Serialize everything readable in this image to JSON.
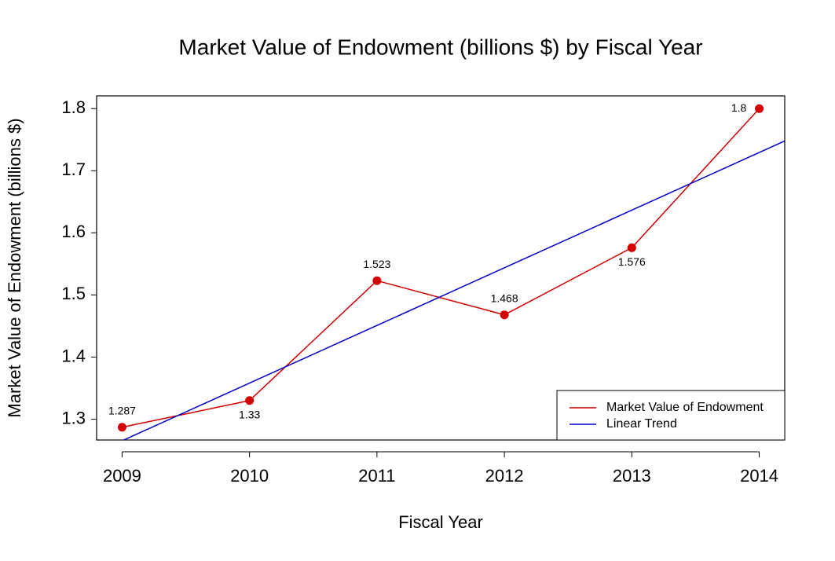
{
  "chart_data": {
    "type": "line",
    "title": "Market Value of Endowment (billions $) by Fiscal Year",
    "xlabel": "Fiscal Year",
    "ylabel": "Market Value of Endowment (billions $)",
    "x": [
      2009,
      2010,
      2011,
      2012,
      2013,
      2014
    ],
    "series": [
      {
        "name": "Market Value of Endowment",
        "color": "#d40000",
        "values": [
          1.287,
          1.33,
          1.523,
          1.468,
          1.576,
          1.8
        ],
        "markers": true,
        "labels": true
      },
      {
        "name": "Linear Trend",
        "color": "#0000c8",
        "values": [
          1.2653,
          1.3581,
          1.4509,
          1.5437,
          1.6365,
          1.7293
        ],
        "markers": false,
        "labels": false
      }
    ],
    "xlim": [
      2008.8,
      2014.2
    ],
    "xticks": [
      2009,
      2010,
      2011,
      2012,
      2013,
      2014
    ],
    "ylim": [
      1.2665,
      1.8205
    ],
    "yticks": [
      1.3,
      1.4,
      1.5,
      1.6,
      1.7,
      1.8
    ],
    "legend": "bottomright"
  }
}
